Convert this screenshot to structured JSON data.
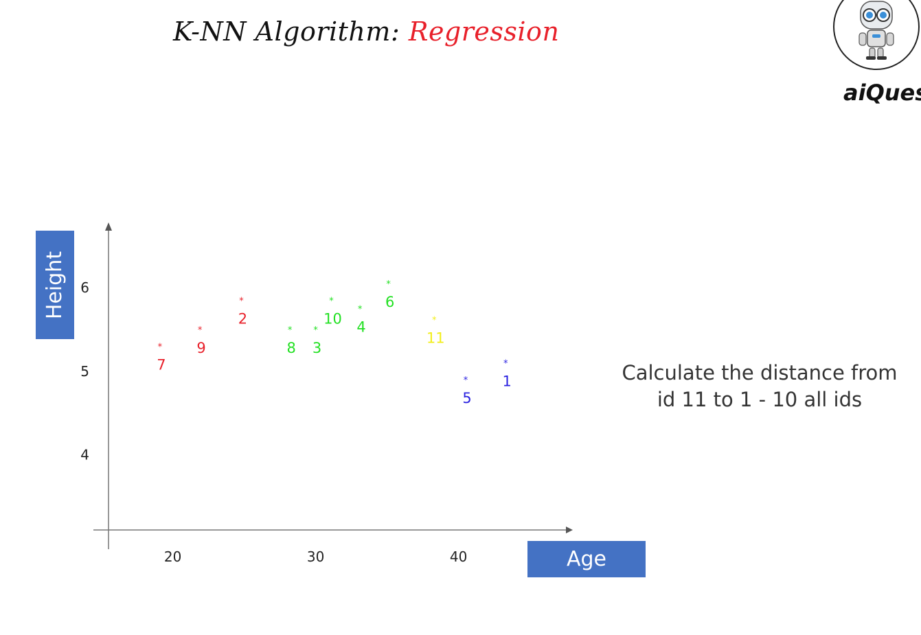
{
  "header": {
    "title_main": "K-NN Algorithm: ",
    "title_accent": "Regression"
  },
  "logo": {
    "text": "aiQues"
  },
  "note": {
    "line1": "Calculate the distance from",
    "line2": "id 11 to 1 - 10 all ids"
  },
  "chart_data": {
    "type": "scatter",
    "xlabel": "Age",
    "ylabel": "Height",
    "xlim": [
      15.5,
      48
    ],
    "ylim": [
      3.1,
      6.75
    ],
    "xticks": [
      20,
      30,
      40
    ],
    "yticks": [
      4,
      5,
      6
    ],
    "marker": "*",
    "points": [
      {
        "id": "1",
        "x": 43.3,
        "y": 5.1,
        "color": "#2a21e0"
      },
      {
        "id": "2",
        "x": 24.8,
        "y": 5.85,
        "color": "#e8202a"
      },
      {
        "id": "3",
        "x": 30.0,
        "y": 5.5,
        "color": "#22e022"
      },
      {
        "id": "4",
        "x": 33.1,
        "y": 5.75,
        "color": "#22e022"
      },
      {
        "id": "5",
        "x": 40.5,
        "y": 4.9,
        "color": "#2a21e0"
      },
      {
        "id": "6",
        "x": 35.1,
        "y": 6.05,
        "color": "#22e022"
      },
      {
        "id": "7",
        "x": 19.1,
        "y": 5.3,
        "color": "#e8202a"
      },
      {
        "id": "8",
        "x": 28.2,
        "y": 5.5,
        "color": "#22e022"
      },
      {
        "id": "9",
        "x": 21.9,
        "y": 5.5,
        "color": "#e8202a"
      },
      {
        "id": "10",
        "x": 31.1,
        "y": 5.85,
        "color": "#22e022"
      },
      {
        "id": "11",
        "x": 38.3,
        "y": 5.62,
        "color": "#f2ee1a"
      }
    ]
  }
}
